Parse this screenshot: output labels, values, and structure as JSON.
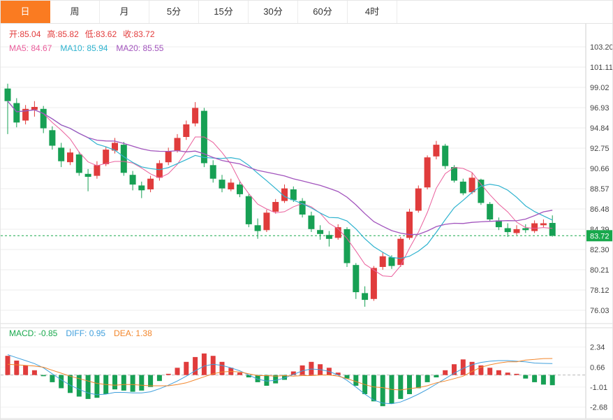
{
  "tabs": [
    {
      "label": "日",
      "active": true
    },
    {
      "label": "周",
      "active": false
    },
    {
      "label": "月",
      "active": false
    },
    {
      "label": "5分",
      "active": false
    },
    {
      "label": "15分",
      "active": false
    },
    {
      "label": "30分",
      "active": false
    },
    {
      "label": "60分",
      "active": false
    },
    {
      "label": "4时",
      "active": false
    }
  ],
  "legend": {
    "open": "开:85.04",
    "high": "高:85.82",
    "low": "低:83.62",
    "close": "收:83.72",
    "ma5": "MA5: 84.67",
    "ma10": "MA10: 85.94",
    "ma20": "MA20: 85.55",
    "macd": "MACD: -0.85",
    "diff": "DIFF: 0.95",
    "dea": "DEA: 1.38"
  },
  "price_badge": "83.72",
  "colors": {
    "up": "#e03c3c",
    "down": "#17a054",
    "ma5": "#ea5f9c",
    "ma10": "#2fb3cf",
    "ma20": "#a254bd",
    "diff_line": "#3f9fdc",
    "dea_line": "#f2862b",
    "current_price_line": "#18a84c",
    "active_tab": "#fa7b21"
  },
  "chart_data": [
    {
      "type": "candlestick",
      "panel": "main",
      "timeframe": "日",
      "y_axis_ticks": [
        "103.20",
        "101.11",
        "99.02",
        "96.93",
        "94.84",
        "92.75",
        "90.66",
        "88.57",
        "86.48",
        "84.39",
        "82.30",
        "80.21",
        "78.12",
        "76.03"
      ],
      "ylim": [
        76.03,
        103.2
      ],
      "grid": true,
      "current_price": 83.72,
      "last_candle": {
        "open": 85.04,
        "high": 85.82,
        "low": 83.62,
        "close": 83.72
      },
      "moving_averages_shown": {
        "MA5": 84.67,
        "MA10": 85.94,
        "MA20": 85.55
      },
      "open": [
        98.9,
        97.4,
        95.6,
        96.7,
        96.8,
        94.6,
        92.8,
        91.3,
        92.1,
        90.1,
        89.9,
        91.1,
        92.5,
        93.1,
        90.0,
        88.9,
        88.5,
        89.7,
        91.3,
        92.5,
        93.9,
        95.3,
        96.6,
        91.0,
        89.5,
        88.5,
        89.0,
        87.8,
        84.8,
        84.3,
        86.2,
        87.3,
        88.5,
        87.3,
        85.8,
        84.3,
        83.8,
        83.5,
        84.4,
        80.7,
        77.8,
        77.2,
        80.5,
        81.5,
        80.7,
        83.5,
        86.3,
        88.7,
        91.9,
        93.0,
        90.8,
        89.3,
        88.2,
        89.5,
        87.0,
        85.3,
        84.5,
        84.0,
        84.5,
        84.2,
        84.8,
        85.04
      ],
      "high": [
        99.4,
        97.9,
        97.2,
        97.6,
        97.1,
        95.0,
        93.3,
        92.7,
        92.4,
        90.6,
        91.4,
        92.9,
        93.8,
        93.4,
        90.4,
        89.3,
        89.9,
        91.5,
        92.8,
        94.2,
        95.6,
        97.5,
        96.9,
        91.5,
        90.0,
        89.6,
        89.4,
        88.0,
        85.5,
        86.4,
        87.5,
        89.0,
        88.8,
        87.6,
        86.2,
        84.8,
        84.2,
        84.9,
        84.6,
        80.9,
        78.5,
        80.6,
        82.0,
        81.7,
        83.6,
        86.5,
        88.9,
        92.0,
        93.5,
        93.2,
        91.0,
        89.6,
        90.2,
        89.6,
        87.2,
        85.6,
        85.0,
        84.8,
        84.9,
        85.3,
        85.4,
        85.82
      ],
      "low": [
        94.2,
        94.9,
        95.2,
        96.0,
        94.3,
        92.6,
        90.8,
        91.0,
        89.9,
        88.3,
        89.6,
        90.9,
        92.2,
        89.9,
        88.4,
        87.6,
        88.2,
        89.4,
        91.0,
        92.3,
        93.6,
        95.0,
        90.8,
        89.2,
        88.2,
        88.3,
        87.7,
        84.6,
        83.4,
        84.1,
        86.0,
        87.1,
        87.2,
        85.6,
        84.1,
        83.3,
        82.6,
        83.3,
        80.5,
        77.2,
        76.4,
        77.0,
        80.2,
        80.3,
        80.5,
        83.3,
        86.1,
        88.5,
        91.6,
        90.6,
        89.2,
        87.9,
        88.0,
        86.9,
        85.2,
        84.3,
        83.6,
        83.8,
        84.0,
        84.0,
        84.6,
        83.62
      ],
      "close": [
        97.6,
        95.4,
        96.8,
        97.0,
        94.8,
        93.0,
        91.4,
        92.3,
        90.2,
        89.8,
        91.0,
        92.6,
        93.3,
        90.2,
        89.0,
        88.4,
        89.6,
        91.2,
        92.4,
        93.8,
        95.2,
        96.9,
        91.2,
        89.6,
        88.6,
        89.2,
        88.0,
        84.9,
        84.2,
        86.1,
        87.2,
        88.6,
        87.4,
        85.9,
        84.4,
        83.9,
        83.4,
        84.6,
        80.9,
        77.9,
        77.1,
        80.4,
        81.6,
        80.6,
        83.4,
        86.2,
        88.6,
        91.8,
        93.1,
        90.9,
        89.4,
        88.1,
        89.7,
        87.1,
        85.4,
        84.6,
        84.1,
        84.4,
        84.3,
        85.0,
        85.0,
        83.72
      ]
    },
    {
      "type": "bar",
      "panel": "macd",
      "name": "MACD",
      "y_axis_ticks": [
        "2.34",
        "0.66",
        "-1.01",
        "-2.68"
      ],
      "values_shown": {
        "MACD": -0.85,
        "DIFF": 0.95,
        "DEA": 1.38
      },
      "histogram": [
        1.6,
        1.2,
        0.8,
        0.4,
        -0.1,
        -0.6,
        -1.1,
        -1.5,
        -1.8,
        -2.0,
        -1.9,
        -1.6,
        -1.2,
        -1.3,
        -1.4,
        -1.3,
        -1.0,
        -0.5,
        0.1,
        0.6,
        1.1,
        1.5,
        1.8,
        1.6,
        1.1,
        0.6,
        0.2,
        -0.2,
        -0.6,
        -0.9,
        -0.7,
        -0.4,
        0.3,
        0.8,
        1.1,
        0.9,
        0.6,
        0.2,
        -0.3,
        -0.9,
        -1.6,
        -2.2,
        -2.6,
        -2.4,
        -2.0,
        -1.6,
        -1.1,
        -0.6,
        -0.2,
        0.4,
        0.9,
        1.3,
        1.1,
        0.8,
        0.6,
        0.4,
        0.2,
        0.1,
        -0.3,
        -0.6,
        -0.8,
        -0.85
      ],
      "diff_line": [
        1.7,
        1.45,
        1.2,
        0.95,
        0.6,
        0.1,
        -0.4,
        -0.85,
        -1.2,
        -1.5,
        -1.65,
        -1.6,
        -1.45,
        -1.45,
        -1.5,
        -1.5,
        -1.4,
        -1.15,
        -0.85,
        -0.5,
        -0.1,
        0.35,
        0.75,
        0.9,
        0.8,
        0.6,
        0.35,
        0.0,
        -0.35,
        -0.5,
        -0.45,
        -0.25,
        0.05,
        0.35,
        0.5,
        0.45,
        0.3,
        0.0,
        -0.45,
        -1.0,
        -1.6,
        -2.1,
        -2.35,
        -2.4,
        -2.25,
        -1.95,
        -1.6,
        -1.2,
        -0.75,
        -0.3,
        0.15,
        0.55,
        0.85,
        1.05,
        1.15,
        1.2,
        1.2,
        1.15,
        1.1,
        1.0,
        0.97,
        0.95
      ]
    }
  ]
}
